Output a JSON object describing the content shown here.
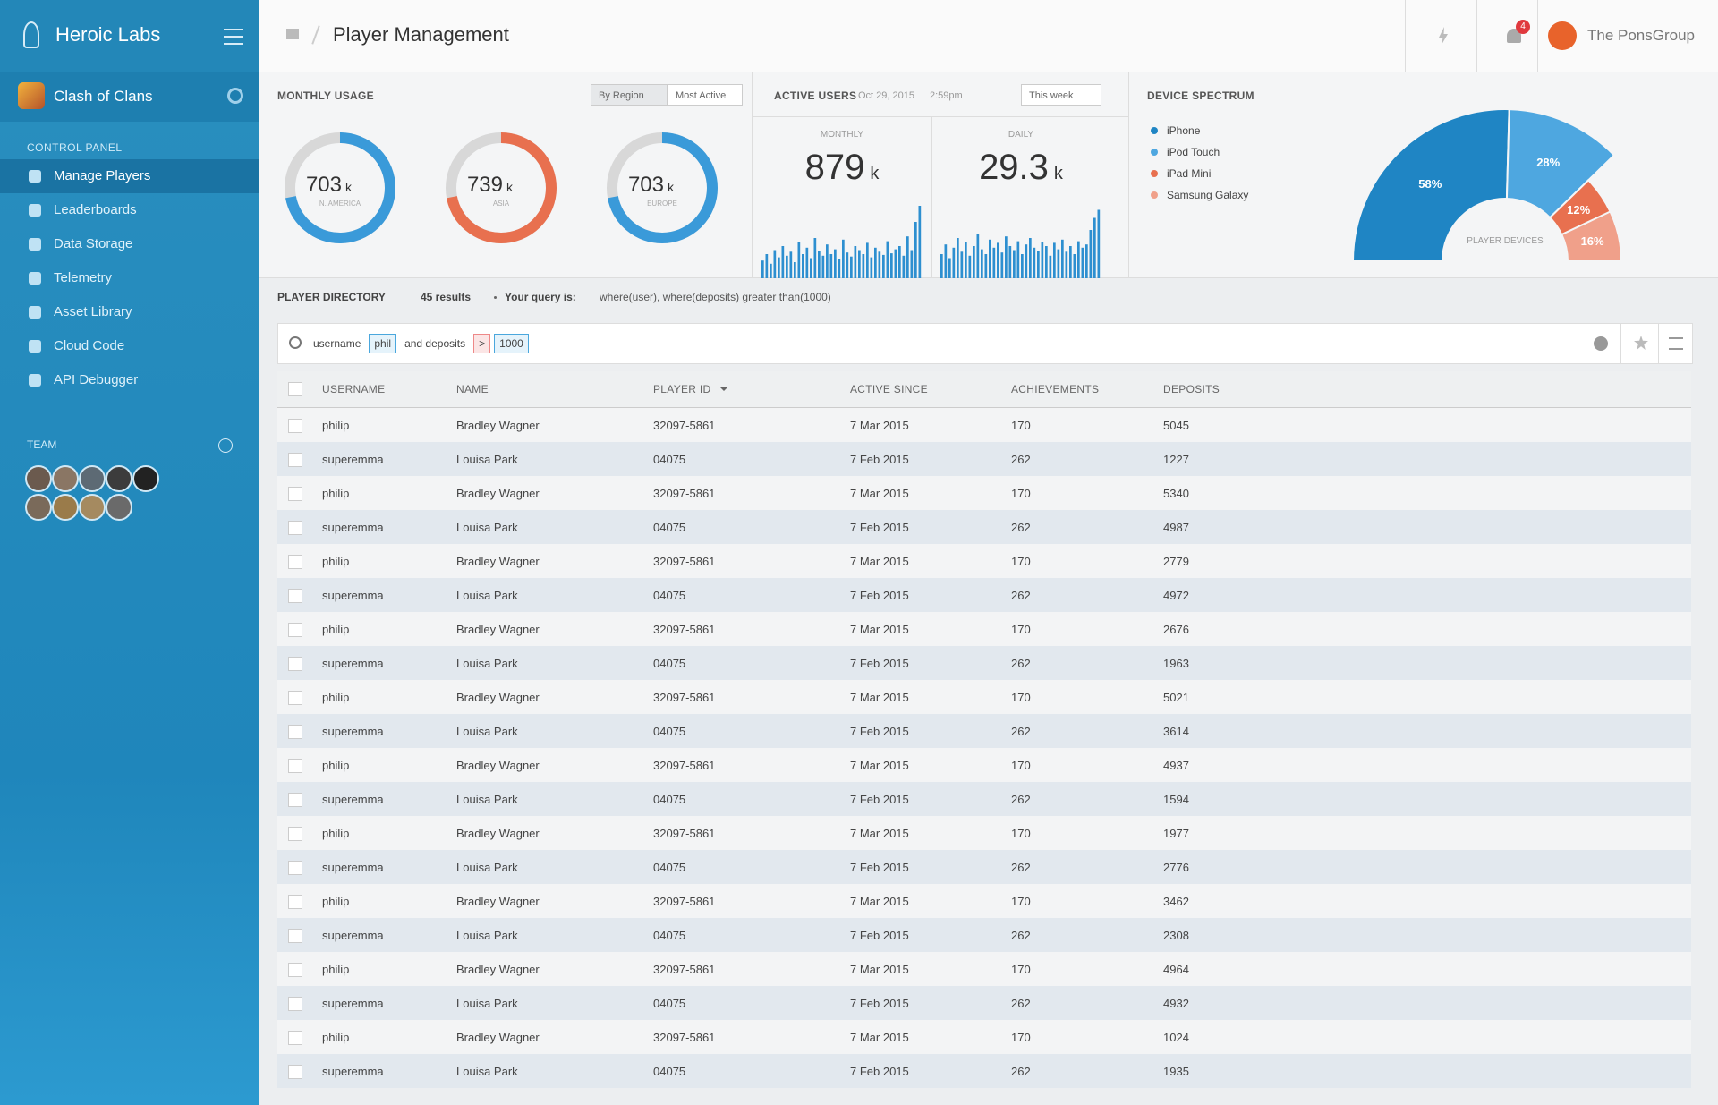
{
  "sidebar": {
    "brand": "Heroic Labs",
    "project": "Clash of Clans",
    "section": "CONTROL PANEL",
    "nav": [
      "Manage Players",
      "Leaderboards",
      "Data Storage",
      "Telemetry",
      "Asset Library",
      "Cloud Code",
      "API Debugger"
    ],
    "team_label": "TEAM"
  },
  "header": {
    "title": "Player Management",
    "org": "The PonsGroup",
    "notifications": 4
  },
  "monthly_usage": {
    "title": "MONTHLY USAGE",
    "filters": [
      "By Region",
      "Most Active"
    ],
    "regions": [
      {
        "value": 703,
        "unit": "k",
        "label": "N. AMERICA",
        "color": "#3a9ad9"
      },
      {
        "value": 739,
        "unit": "k",
        "label": "ASIA",
        "color": "#e8704f"
      },
      {
        "value": 703,
        "unit": "k",
        "label": "EUROPE",
        "color": "#3a9ad9"
      }
    ]
  },
  "active_users": {
    "title": "ACTIVE USERS",
    "date": "Oct 29, 2015",
    "time": "2:59pm",
    "filter": "This week",
    "panels": [
      {
        "label": "MONTHLY",
        "value": 879,
        "unit": "k",
        "bars": [
          22,
          30,
          18,
          35,
          26,
          40,
          28,
          33,
          20,
          45,
          30,
          38,
          25,
          50,
          34,
          28,
          42,
          30,
          36,
          24,
          48,
          32,
          27,
          40,
          35,
          30,
          44,
          26,
          38,
          33,
          29,
          46,
          31,
          36,
          40,
          28,
          52,
          35,
          70,
          90
        ]
      },
      {
        "label": "DAILY",
        "value": 29.3,
        "unit": "k",
        "bars": [
          30,
          42,
          25,
          38,
          50,
          33,
          45,
          28,
          40,
          55,
          36,
          30,
          48,
          38,
          44,
          32,
          52,
          40,
          35,
          46,
          30,
          42,
          50,
          38,
          34,
          45,
          40,
          28,
          44,
          36,
          48,
          33,
          40,
          30,
          46,
          38,
          42,
          60,
          75,
          85
        ]
      }
    ]
  },
  "device_spectrum": {
    "title": "DEVICE SPECTRUM",
    "center": "PLAYER DEVICES",
    "segments": [
      {
        "name": "iPhone",
        "value": 58,
        "value_label": "58%",
        "color": "#1f85c4"
      },
      {
        "name": "iPod Touch",
        "value": 28,
        "value_label": "28%",
        "color": "#4ea7e0"
      },
      {
        "name": "iPad Mini",
        "value": 12,
        "value_label": "12%",
        "color": "#e8704f"
      },
      {
        "name": "Samsung Galaxy",
        "value": 16,
        "value_label": "16%",
        "color": "#f0a08a"
      }
    ]
  },
  "directory": {
    "title": "PLAYER DIRECTORY",
    "results": "45 results",
    "query_label": "Your query is:",
    "query": "where(user), where(deposits) greater than(1000)",
    "search": [
      "username",
      "phil",
      "and deposits",
      ">",
      "1000"
    ],
    "columns": [
      "USERNAME",
      "NAME",
      "PLAYER ID",
      "ACTIVE SINCE",
      "ACHIEVEMENTS",
      "DEPOSITS"
    ],
    "rows": [
      [
        "philip",
        "Bradley Wagner",
        "32097-5861",
        "7 Mar 2015",
        "170",
        "5045"
      ],
      [
        "superemma",
        "Louisa Park",
        "04075",
        "7 Feb 2015",
        "262",
        "1227"
      ],
      [
        "philip",
        "Bradley Wagner",
        "32097-5861",
        "7 Mar 2015",
        "170",
        "5340"
      ],
      [
        "superemma",
        "Louisa Park",
        "04075",
        "7 Feb 2015",
        "262",
        "4987"
      ],
      [
        "philip",
        "Bradley Wagner",
        "32097-5861",
        "7 Mar 2015",
        "170",
        "2779"
      ],
      [
        "superemma",
        "Louisa Park",
        "04075",
        "7 Feb 2015",
        "262",
        "4972"
      ],
      [
        "philip",
        "Bradley Wagner",
        "32097-5861",
        "7 Mar 2015",
        "170",
        "2676"
      ],
      [
        "superemma",
        "Louisa Park",
        "04075",
        "7 Feb 2015",
        "262",
        "1963"
      ],
      [
        "philip",
        "Bradley Wagner",
        "32097-5861",
        "7 Mar 2015",
        "170",
        "5021"
      ],
      [
        "superemma",
        "Louisa Park",
        "04075",
        "7 Feb 2015",
        "262",
        "3614"
      ],
      [
        "philip",
        "Bradley Wagner",
        "32097-5861",
        "7 Mar 2015",
        "170",
        "4937"
      ],
      [
        "superemma",
        "Louisa Park",
        "04075",
        "7 Feb 2015",
        "262",
        "1594"
      ],
      [
        "philip",
        "Bradley Wagner",
        "32097-5861",
        "7 Mar 2015",
        "170",
        "1977"
      ],
      [
        "superemma",
        "Louisa Park",
        "04075",
        "7 Feb 2015",
        "262",
        "2776"
      ],
      [
        "philip",
        "Bradley Wagner",
        "32097-5861",
        "7 Mar 2015",
        "170",
        "3462"
      ],
      [
        "superemma",
        "Louisa Park",
        "04075",
        "7 Feb 2015",
        "262",
        "2308"
      ],
      [
        "philip",
        "Bradley Wagner",
        "32097-5861",
        "7 Mar 2015",
        "170",
        "4964"
      ],
      [
        "superemma",
        "Louisa Park",
        "04075",
        "7 Feb 2015",
        "262",
        "4932"
      ],
      [
        "philip",
        "Bradley Wagner",
        "32097-5861",
        "7 Mar 2015",
        "170",
        "1024"
      ],
      [
        "superemma",
        "Louisa Park",
        "04075",
        "7 Feb 2015",
        "262",
        "1935"
      ]
    ]
  }
}
